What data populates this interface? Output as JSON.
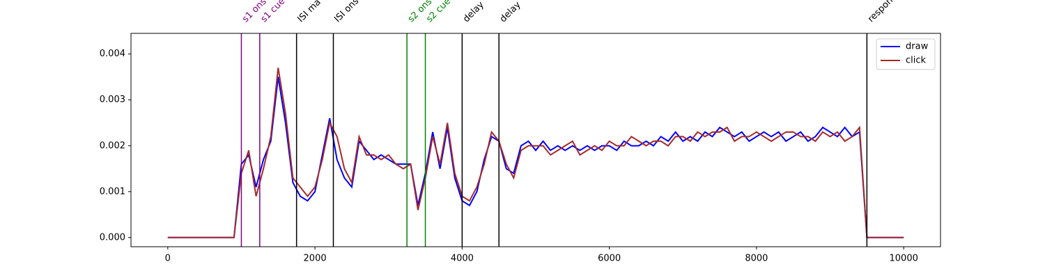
{
  "chart_data": {
    "type": "line",
    "x": [
      0,
      100,
      200,
      300,
      400,
      500,
      600,
      700,
      800,
      900,
      1000,
      1100,
      1200,
      1300,
      1400,
      1500,
      1600,
      1700,
      1800,
      1900,
      2000,
      2100,
      2200,
      2300,
      2400,
      2500,
      2600,
      2700,
      2800,
      2900,
      3000,
      3100,
      3200,
      3300,
      3400,
      3500,
      3600,
      3700,
      3800,
      3900,
      4000,
      4100,
      4200,
      4300,
      4400,
      4500,
      4600,
      4700,
      4800,
      4900,
      5000,
      5100,
      5200,
      5300,
      5400,
      5500,
      5600,
      5700,
      5800,
      5900,
      6000,
      6100,
      6200,
      6300,
      6400,
      6500,
      6600,
      6700,
      6800,
      6900,
      7000,
      7100,
      7200,
      7300,
      7400,
      7500,
      7600,
      7700,
      7800,
      7900,
      8000,
      8100,
      8200,
      8300,
      8400,
      8500,
      8600,
      8700,
      8800,
      8900,
      9000,
      9100,
      9200,
      9300,
      9400,
      9500,
      9600,
      9700,
      9800,
      9900,
      10000
    ],
    "series": [
      {
        "name": "draw",
        "color": "#0000ff",
        "values": [
          0,
          0,
          0,
          0,
          0,
          0,
          0,
          0,
          0,
          0,
          0.0016,
          0.0018,
          0.0011,
          0.0017,
          0.0021,
          0.0035,
          0.0025,
          0.0012,
          0.0009,
          0.0008,
          0.001,
          0.0018,
          0.0026,
          0.0017,
          0.0013,
          0.0011,
          0.0021,
          0.0019,
          0.0017,
          0.0018,
          0.0017,
          0.0016,
          0.0016,
          0.0016,
          0.0007,
          0.0014,
          0.0023,
          0.0015,
          0.0024,
          0.0013,
          0.0008,
          0.0007,
          0.001,
          0.0017,
          0.0022,
          0.0021,
          0.0015,
          0.0014,
          0.002,
          0.0021,
          0.0019,
          0.0021,
          0.0019,
          0.002,
          0.0019,
          0.002,
          0.0019,
          0.002,
          0.0019,
          0.002,
          0.002,
          0.0019,
          0.0021,
          0.002,
          0.002,
          0.0021,
          0.002,
          0.0022,
          0.0021,
          0.0023,
          0.0021,
          0.0022,
          0.0021,
          0.0023,
          0.0022,
          0.0024,
          0.0023,
          0.0022,
          0.0023,
          0.0021,
          0.0022,
          0.0023,
          0.0022,
          0.0023,
          0.0021,
          0.0022,
          0.0023,
          0.0021,
          0.0022,
          0.0024,
          0.0023,
          0.0022,
          0.0024,
          0.0022,
          0.0023,
          0,
          0,
          0,
          0,
          0,
          0
        ]
      },
      {
        "name": "click",
        "color": "#a52a2a",
        "values": [
          0,
          0,
          0,
          0,
          0,
          0,
          0,
          0,
          0,
          0,
          0.0014,
          0.0019,
          0.0009,
          0.0015,
          0.0022,
          0.0037,
          0.0027,
          0.0013,
          0.0011,
          0.0009,
          0.0011,
          0.0017,
          0.0025,
          0.0022,
          0.0015,
          0.0012,
          0.0022,
          0.0018,
          0.0018,
          0.0017,
          0.0018,
          0.0016,
          0.0015,
          0.0016,
          0.0006,
          0.0013,
          0.0022,
          0.0016,
          0.0025,
          0.0014,
          0.0009,
          0.0008,
          0.0011,
          0.0016,
          0.0023,
          0.0021,
          0.0016,
          0.0013,
          0.0019,
          0.002,
          0.002,
          0.002,
          0.0018,
          0.0019,
          0.002,
          0.0021,
          0.0018,
          0.0019,
          0.002,
          0.0019,
          0.0021,
          0.002,
          0.002,
          0.0022,
          0.0021,
          0.002,
          0.0021,
          0.0021,
          0.002,
          0.0022,
          0.0022,
          0.0021,
          0.0023,
          0.0022,
          0.0023,
          0.0023,
          0.0024,
          0.0021,
          0.0022,
          0.0022,
          0.0023,
          0.0022,
          0.0021,
          0.0022,
          0.0023,
          0.0023,
          0.0022,
          0.0022,
          0.0021,
          0.0023,
          0.0022,
          0.0023,
          0.0021,
          0.0022,
          0.0024,
          0,
          0,
          0,
          0,
          0,
          0
        ]
      }
    ],
    "events": [
      {
        "x": 1000,
        "label": "s1 ons",
        "color": "#800080"
      },
      {
        "x": 1250,
        "label": "s1 cue",
        "color": "#800080"
      },
      {
        "x": 1750,
        "label": "ISI ma",
        "color": "#000000"
      },
      {
        "x": 2250,
        "label": "ISI ons",
        "color": "#000000"
      },
      {
        "x": 3250,
        "label": "s2 ons",
        "color": "#008000"
      },
      {
        "x": 3500,
        "label": "s2 cue",
        "color": "#008000"
      },
      {
        "x": 4000,
        "label": "delay",
        "color": "#000000"
      },
      {
        "x": 4500,
        "label": "delay",
        "color": "#000000"
      },
      {
        "x": 9500,
        "label": "respon",
        "color": "#000000"
      }
    ],
    "xlim": [
      -500,
      10500
    ],
    "xticks": [
      0,
      2000,
      4000,
      6000,
      8000,
      10000
    ],
    "ylim": [
      -0.0002,
      0.00445
    ],
    "yticks": [
      {
        "value": 0,
        "label": "0.000"
      },
      {
        "value": 0.001,
        "label": "0.001"
      },
      {
        "value": 0.002,
        "label": "0.002"
      },
      {
        "value": 0.003,
        "label": "0.003"
      },
      {
        "value": 0.004,
        "label": "0.004"
      }
    ],
    "legend": "upper right"
  }
}
